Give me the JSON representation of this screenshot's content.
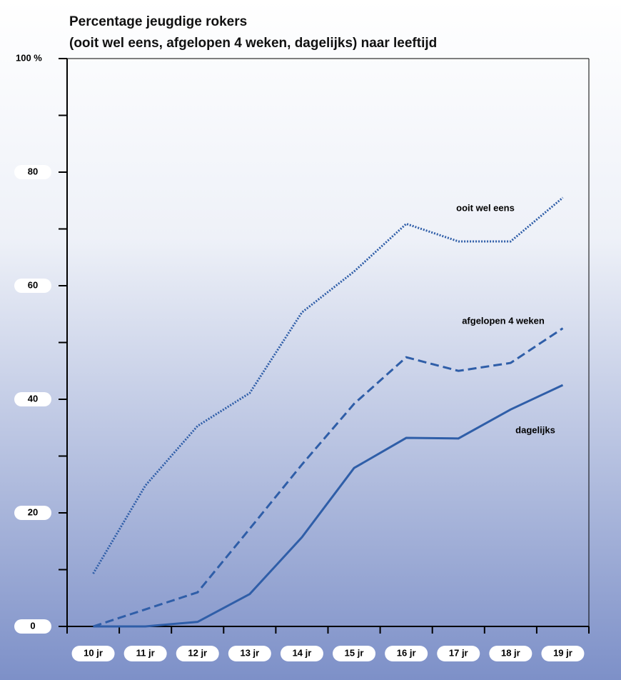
{
  "chart_data": {
    "type": "line",
    "title": "Percentage jeugdige rokers",
    "subtitle": "(ooit wel eens, afgelopen 4 weken, dagelijks) naar leeftijd",
    "categories": [
      "10 jr",
      "11 jr",
      "12 jr",
      "13 jr",
      "14 jr",
      "15 jr",
      "16 jr",
      "17 jr",
      "18 jr",
      "19 jr"
    ],
    "series": [
      {
        "name": "ooit wel eens",
        "color": "#2f5ea8",
        "style": "dotted",
        "values": [
          9.3,
          24.8,
          35.3,
          41.1,
          55.3,
          62.5,
          70.9,
          67.8,
          67.8,
          75.5
        ]
      },
      {
        "name": "afgelopen 4 weken",
        "color": "#2f5ea8",
        "style": "dashed",
        "values": [
          0,
          3,
          6,
          17.2,
          28.5,
          39.2,
          47.4,
          45,
          46.4,
          52.5
        ]
      },
      {
        "name": "dagelijks",
        "color": "#2f5ea8",
        "style": "solid",
        "values": [
          0,
          0,
          0.8,
          5.7,
          15.7,
          27.9,
          33.2,
          33.1,
          38.2,
          42.5
        ]
      }
    ],
    "ylim": [
      0,
      100
    ],
    "yticks": [
      0,
      20,
      40,
      60,
      80,
      {
        "value": 100,
        "label": "100 %"
      }
    ],
    "yminorticks": [
      10,
      30,
      50,
      70,
      90
    ]
  }
}
